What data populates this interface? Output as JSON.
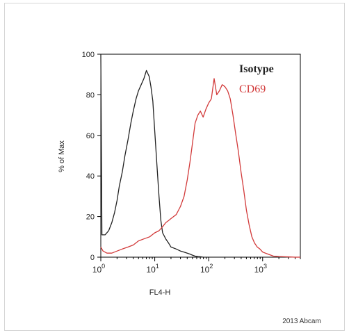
{
  "chart_data": {
    "type": "line",
    "title": "",
    "xlabel": "FL4-H",
    "ylabel": "% of Max",
    "x_scale": "log",
    "xlim": [
      1,
      5000
    ],
    "ylim": [
      0,
      100
    ],
    "y_ticks": [
      "0",
      "20",
      "40",
      "60",
      "80",
      "100"
    ],
    "x_ticks": [
      {
        "value": 1,
        "base": "10",
        "exp": "0"
      },
      {
        "value": 10,
        "base": "10",
        "exp": "1"
      },
      {
        "value": 100,
        "base": "10",
        "exp": "2"
      },
      {
        "value": 1000,
        "base": "10",
        "exp": "3"
      }
    ],
    "grid": false,
    "legend_position": "top-right",
    "series": [
      {
        "name": "Isotype",
        "color": "#222222",
        "x": [
          1,
          1.05,
          1.2,
          1.4,
          1.6,
          1.8,
          2.0,
          2.2,
          2.5,
          2.8,
          3.2,
          3.6,
          4.0,
          4.5,
          5.0,
          5.6,
          6.3,
          7.0,
          7.9,
          8.5,
          9.2,
          10,
          11,
          12,
          13,
          14,
          16,
          18,
          20,
          25,
          30,
          35,
          40,
          45,
          50,
          56,
          63,
          70,
          79
        ],
        "y": [
          100,
          11,
          11,
          13,
          17,
          22,
          28,
          35,
          42,
          50,
          58,
          66,
          72,
          78,
          82,
          85,
          88,
          92,
          89,
          84,
          77,
          62,
          45,
          30,
          18,
          12,
          9,
          7,
          5,
          4,
          3,
          2.5,
          2,
          1.5,
          1,
          0.5,
          0.3,
          0.2,
          0
        ]
      },
      {
        "name": "CD69",
        "color": "#d23a3a",
        "x": [
          1,
          1.1,
          1.3,
          1.6,
          2.0,
          2.5,
          3.2,
          4.0,
          5.0,
          6.3,
          8.0,
          10,
          12,
          14,
          16,
          18,
          20,
          25,
          30,
          35,
          40,
          45,
          50,
          56,
          63,
          70,
          79,
          89,
          100,
          112,
          126,
          141,
          158,
          178,
          200,
          224,
          251,
          282,
          316,
          355,
          398,
          447,
          501,
          562,
          631,
          708,
          794,
          891,
          1000,
          1259,
          1585,
          1995,
          2512,
          3162,
          3981,
          5000
        ],
        "y": [
          5,
          3,
          2,
          2,
          3,
          4,
          5,
          6,
          8,
          9,
          10,
          12,
          13,
          15,
          17,
          18,
          19,
          21,
          25,
          30,
          38,
          47,
          56,
          66,
          70,
          72,
          69,
          73,
          76,
          78,
          88,
          80,
          82,
          85,
          84,
          82,
          78,
          70,
          61,
          52,
          42,
          33,
          23,
          16,
          10,
          7,
          5,
          4,
          2.5,
          1.5,
          0.5,
          0.3,
          0.2,
          0.1,
          0,
          0
        ]
      }
    ],
    "credit": "2013 Abcam"
  }
}
